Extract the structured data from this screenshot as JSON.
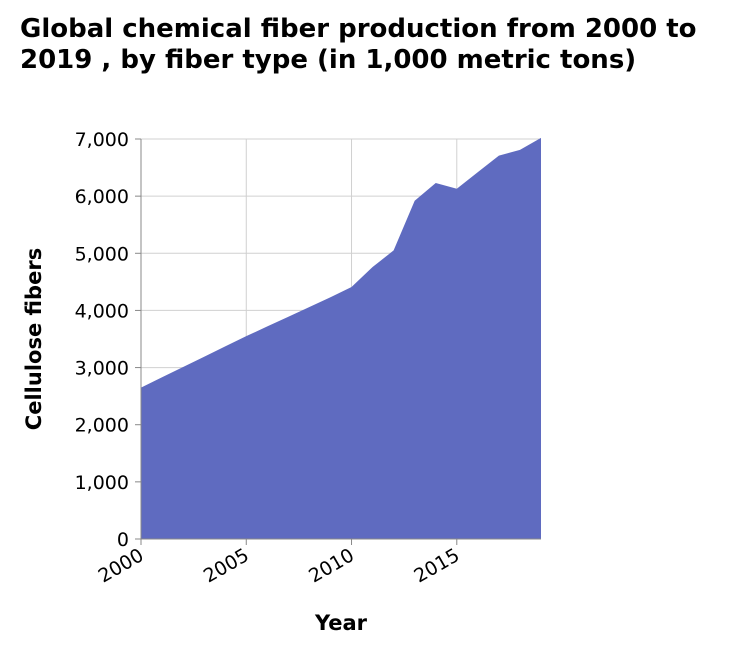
{
  "chart_data": {
    "type": "area",
    "title": "Global chemical fiber production from 2000 to 2019 , by fiber type (in 1,000 metric tons)",
    "xlabel": "Year",
    "ylabel": "Cellulose fibers",
    "x": [
      2000,
      2001,
      2002,
      2003,
      2004,
      2005,
      2006,
      2007,
      2008,
      2009,
      2010,
      2011,
      2012,
      2013,
      2014,
      2015,
      2016,
      2017,
      2018,
      2019
    ],
    "values": [
      2650,
      2830,
      3010,
      3190,
      3370,
      3550,
      3720,
      3890,
      4060,
      4230,
      4410,
      4760,
      5050,
      5920,
      6230,
      6130,
      6420,
      6710,
      6810,
      7020
    ],
    "xlim": [
      2000,
      2019
    ],
    "ylim": [
      0,
      7000
    ],
    "x_ticks": [
      "2000",
      "2005",
      "2010",
      "2015"
    ],
    "y_ticks": [
      "0",
      "1,000",
      "2,000",
      "3,000",
      "4,000",
      "5,000",
      "6,000",
      "7,000"
    ],
    "grid": true,
    "colors": {
      "area": "#5f6bc0",
      "grid": "#d0d0d0",
      "axis": "#888888"
    }
  }
}
